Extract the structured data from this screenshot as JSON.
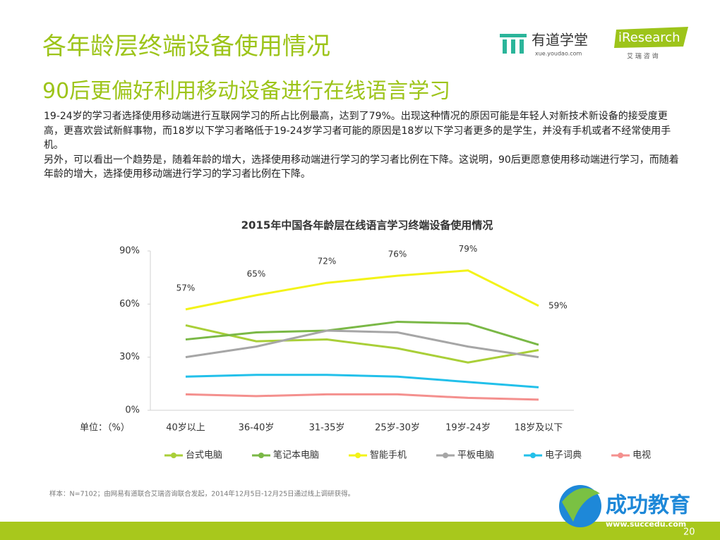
{
  "header": {
    "title": "各年龄层终端设备使用情况",
    "subtitle": "90后更偏好利用移动设备进行在线语言学习"
  },
  "logos": {
    "youdao": "有道学堂",
    "youdao_url": "xue.youdao.com",
    "iresearch": "iResearch",
    "iresearch_cn": "艾 瑞 咨 询",
    "succedu": "成功教育",
    "succedu_url": "www.succedu.com"
  },
  "body": [
    "19-24岁的学习者选择使用移动端进行互联网学习的所占比例最高，达到了79%。出现这种情况的原因可能是年轻人对新技术新设备的接受度更高，更喜欢尝试新鲜事物，而18岁以下学习者略低于19-24岁学习者可能的原因是18岁以下学习者更多的是学生，并没有手机或者不经常使用手机。",
    "另外，可以看出一个趋势是，随着年龄的增大，选择使用移动端进行学习的学习者比例在下降。这说明，90后更愿意使用移动端进行学习，而随着年龄的增大，选择使用移动端进行学习的学习者比例在下降。"
  ],
  "chart_data": {
    "type": "line",
    "title": "2015年中国各年龄层在线语言学习终端设备使用情况",
    "unit_label": "单位：（%）",
    "categories": [
      "40岁以上",
      "36-40岁",
      "31-35岁",
      "25岁-30岁",
      "19岁-24岁",
      "18岁及以下"
    ],
    "series": [
      {
        "name": "台式电脑",
        "color": "#a9cf38",
        "values": [
          48,
          39,
          40,
          35,
          27,
          34
        ]
      },
      {
        "name": "笔记本电脑",
        "color": "#7ab846",
        "values": [
          40,
          44,
          45,
          50,
          49,
          37
        ]
      },
      {
        "name": "智能手机",
        "color": "#f3f318",
        "values": [
          57,
          65,
          72,
          76,
          79,
          59
        ],
        "value_labels": [
          "57%",
          "65%",
          "72%",
          "76%",
          "79%",
          "59%"
        ]
      },
      {
        "name": "平板电脑",
        "color": "#a6a6a6",
        "values": [
          30,
          36,
          45,
          44,
          36,
          30
        ]
      },
      {
        "name": "电子词典",
        "color": "#22c0ea",
        "values": [
          19,
          20,
          20,
          19,
          16,
          13
        ]
      },
      {
        "name": "电视",
        "color": "#f4908e",
        "values": [
          9,
          8,
          9,
          9,
          7,
          6
        ]
      }
    ],
    "ylim": [
      0,
      90
    ],
    "yticks": [
      {
        "value": 0,
        "label": "0%"
      },
      {
        "value": 30,
        "label": "30%"
      },
      {
        "value": 60,
        "label": "60%"
      },
      {
        "value": 90,
        "label": "90%"
      }
    ],
    "legend": "bottom"
  },
  "footnote": "样本：N=7102；由网易有道联合艾瑞咨询联合发起，2014年12月5日-12月25日通过线上调研获得。",
  "page_number": "20"
}
